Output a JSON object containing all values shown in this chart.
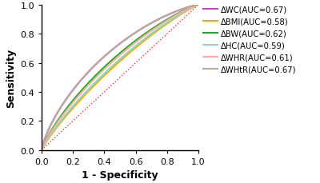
{
  "title": "",
  "xlabel": "1 - Specificity",
  "ylabel": "Sensitivity",
  "xlim": [
    0.0,
    1.0
  ],
  "ylim": [
    0.0,
    1.0
  ],
  "xticks": [
    0.0,
    0.2,
    0.4,
    0.6,
    0.8,
    1.0
  ],
  "yticks": [
    0.0,
    0.2,
    0.4,
    0.6,
    0.8,
    1.0
  ],
  "curves": [
    {
      "label": "ΔWC(AUC=0.67)",
      "auc": 0.67,
      "color": "#CC44CC",
      "lw": 1.5
    },
    {
      "label": "ΔBMI(AUC=0.58)",
      "auc": 0.58,
      "color": "#FFA500",
      "lw": 1.5
    },
    {
      "label": "ΔBW(AUC=0.62)",
      "auc": 0.62,
      "color": "#22AA22",
      "lw": 1.5
    },
    {
      "label": "ΔHC(AUC=0.59)",
      "auc": 0.59,
      "color": "#88DDBB",
      "lw": 1.5
    },
    {
      "label": "ΔWHR(AUC=0.61)",
      "auc": 0.61,
      "color": "#FFAAAA",
      "lw": 1.5
    },
    {
      "label": "ΔWHtR(AUC=0.67)",
      "auc": 0.67,
      "color": "#BBAA99",
      "lw": 1.5
    }
  ],
  "diagonal_color": "#EE3333",
  "diagonal_lw": 1.0,
  "background_color": "#FFFFFF",
  "legend_fontsize": 7.2,
  "axis_label_fontsize": 9,
  "tick_fontsize": 8,
  "figsize": [
    4.0,
    2.3
  ],
  "dpi": 100
}
